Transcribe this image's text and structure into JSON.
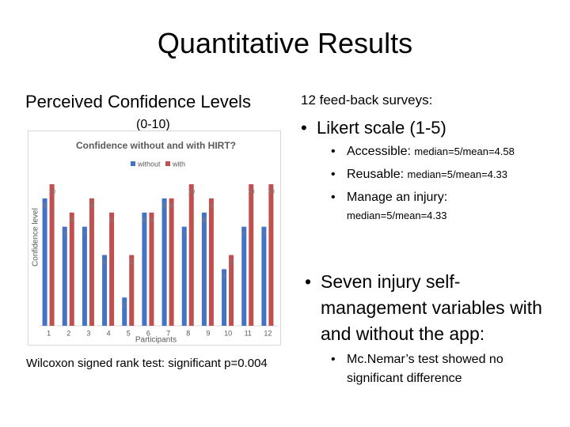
{
  "title": "Quantitative Results",
  "left": {
    "heading": "Perceived Confidence Levels",
    "scale": "(0-10)",
    "test": "Wilcoxon signed rank test: significant p=0.004"
  },
  "right": {
    "intro": "12 feed-back surveys:",
    "bullets": [
      {
        "text": "Likert scale (1-5)",
        "items": [
          {
            "label": "Accessible: ",
            "detail": "median=5/mean=4.58"
          },
          {
            "label": "Reusable: ",
            "detail": "median=5/mean=4.33"
          },
          {
            "label": "Manage an injury:",
            "detail": "median=5/mean=4.33"
          }
        ]
      },
      {
        "text": "Seven injury self-management variables with and without the app:",
        "items": [
          {
            "label": "Mc.Nemar’s test showed no significant difference"
          }
        ]
      }
    ]
  },
  "chart_data": {
    "type": "bar",
    "title": "Confidence without and with HIRT?",
    "x_label": "Participants",
    "y_label": "Confidence level",
    "categories": [
      "1",
      "2",
      "3",
      "4",
      "5",
      "6",
      "7",
      "8",
      "9",
      "10",
      "11",
      "12"
    ],
    "series": [
      {
        "name": "without",
        "color": "#4472c4",
        "values": [
          9,
          7,
          7,
          5,
          2,
          8,
          9,
          7,
          8,
          4,
          7,
          7
        ]
      },
      {
        "name": "with",
        "color": "#c0504d",
        "values": [
          10,
          8,
          9,
          8,
          5,
          8,
          9,
          10,
          9,
          5,
          10,
          10
        ]
      }
    ],
    "ylim": [
      0,
      10
    ],
    "legend": "top"
  }
}
